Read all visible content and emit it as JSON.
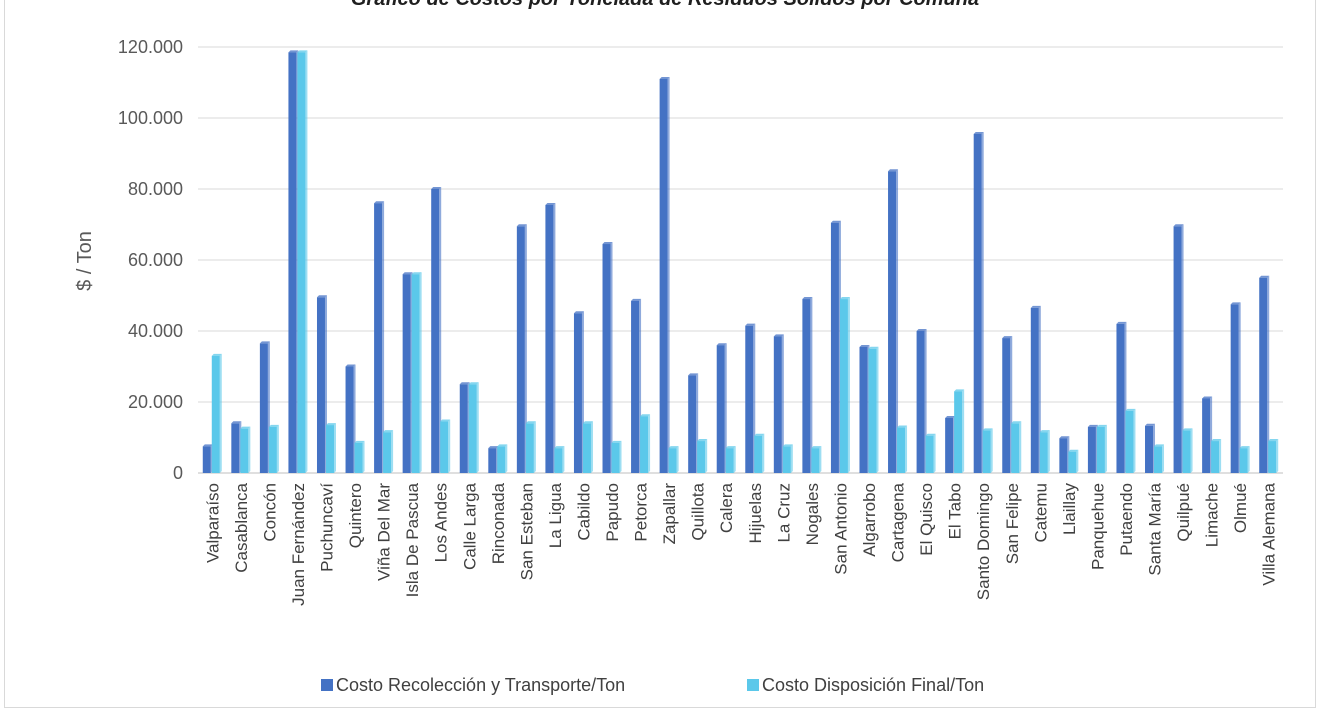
{
  "chart_data": {
    "type": "bar",
    "title": "Gráfico de Costos por Tonelada de Residuos Sólidos por Comuna",
    "xlabel": "",
    "ylabel": "$ / Ton",
    "ylim": [
      0,
      120000
    ],
    "yticks": [
      "0",
      "20.000",
      "40.000",
      "60.000",
      "80.000",
      "100.000",
      "120.000"
    ],
    "grid": true,
    "legend_position": "bottom",
    "categories": [
      "Valparaíso",
      "Casablanca",
      "Concón",
      "Juan Fernández",
      "Puchuncaví",
      "Quintero",
      "Viña Del Mar",
      "Isla De Pascua",
      "Los Andes",
      "Calle Larga",
      "Rinconada",
      "San Esteban",
      "La Ligua",
      "Cabildo",
      "Papudo",
      "Petorca",
      "Zapallar",
      "Quillota",
      "Calera",
      "Hijuelas",
      "La Cruz",
      "Nogales",
      "San Antonio",
      "Algarrobo",
      "Cartagena",
      "El Quisco",
      "El Tabo",
      "Santo Domingo",
      "San Felipe",
      "Catemu",
      "Llaillay",
      "Panquehue",
      "Putaendo",
      "Santa María",
      "Quilpué",
      "Limache",
      "Olmué",
      "Villa Alemana"
    ],
    "series": [
      {
        "name": "Costo Recolección y Transporte/Ton",
        "color": "#4472c4",
        "values": [
          7500,
          14000,
          36500,
          118500,
          49500,
          30000,
          76000,
          56000,
          80000,
          25000,
          7000,
          69500,
          75500,
          45000,
          64500,
          48500,
          111000,
          27500,
          36000,
          41500,
          38500,
          49000,
          70500,
          35500,
          85000,
          40000,
          15500,
          95500,
          38000,
          46500,
          9800,
          13000,
          42000,
          13300,
          69500,
          21000,
          47500,
          55000
        ]
      },
      {
        "name": "Costo Disposición Final/Ton",
        "color": "#5bc8ea",
        "values": [
          33000,
          12500,
          13000,
          118500,
          13500,
          8500,
          11500,
          56000,
          14500,
          25000,
          7500,
          14000,
          7000,
          14000,
          8500,
          16000,
          7000,
          9000,
          7000,
          10500,
          7500,
          7000,
          49000,
          35000,
          12800,
          10500,
          23000,
          12000,
          14000,
          11500,
          6000,
          13000,
          17500,
          7500,
          12000,
          9000,
          7000,
          9000
        ]
      }
    ]
  }
}
